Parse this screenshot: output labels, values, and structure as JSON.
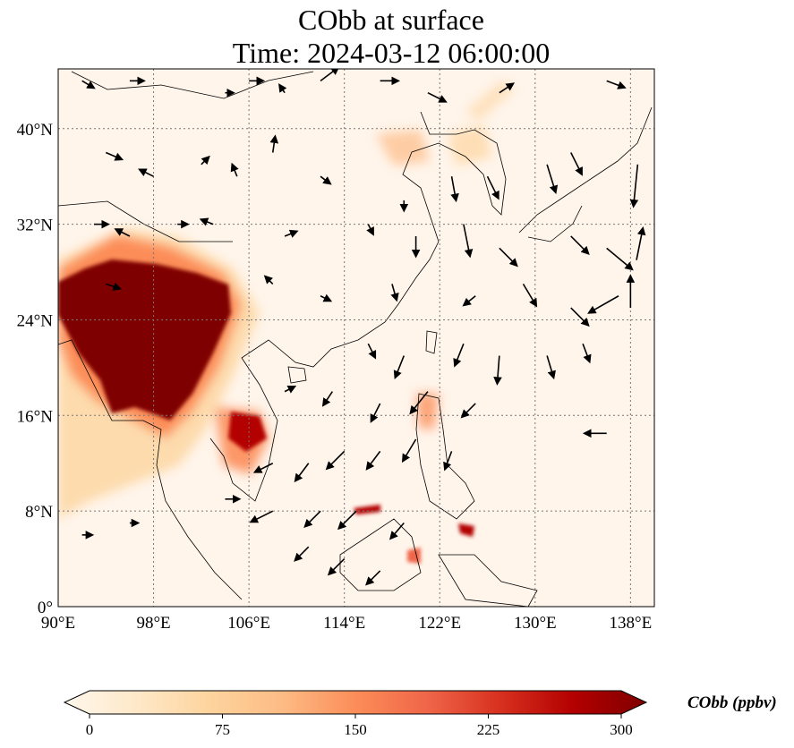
{
  "title": {
    "line1": "CObb at surface",
    "line2": "Time: 2024-03-12 06:00:00"
  },
  "map": {
    "lon_range": [
      90,
      140
    ],
    "lat_range": [
      0,
      45
    ],
    "x_ticks": [
      {
        "value": 90,
        "label": "90°E"
      },
      {
        "value": 98,
        "label": "98°E"
      },
      {
        "value": 106,
        "label": "106°E"
      },
      {
        "value": 114,
        "label": "114°E"
      },
      {
        "value": 122,
        "label": "122°E"
      },
      {
        "value": 130,
        "label": "130°E"
      },
      {
        "value": 138,
        "label": "138°E"
      }
    ],
    "y_ticks": [
      {
        "value": 0,
        "label": "0°"
      },
      {
        "value": 8,
        "label": "8°N"
      },
      {
        "value": 16,
        "label": "16°N"
      },
      {
        "value": 24,
        "label": "24°N"
      },
      {
        "value": 32,
        "label": "32°N"
      },
      {
        "value": 40,
        "label": "40°N"
      }
    ],
    "background_color": "#fff5eb",
    "grid": "dotted"
  },
  "colorbar": {
    "label": "CObb (ppbv)",
    "min": 0,
    "max": 300,
    "ticks": [
      "0",
      "75",
      "150",
      "225",
      "300"
    ],
    "colors": [
      "#fff7ec",
      "#fee8c8",
      "#fdd49e",
      "#fdbb84",
      "#fc8d59",
      "#ef6548",
      "#d7301f",
      "#b30000",
      "#7f0000"
    ]
  },
  "wind_vectors": [
    [
      92,
      44,
      0.5,
      -0.3
    ],
    [
      96,
      44,
      0.6,
      0
    ],
    [
      104,
      43,
      0.3,
      0
    ],
    [
      106,
      44,
      0.6,
      0
    ],
    [
      109,
      43,
      -0.2,
      0.3
    ],
    [
      112,
      44,
      0.8,
      0.6
    ],
    [
      117,
      44,
      0.8,
      0
    ],
    [
      121,
      43,
      0.8,
      -0.4
    ],
    [
      127,
      43,
      0.6,
      0.4
    ],
    [
      136,
      44,
      0.8,
      -0.3
    ],
    [
      94,
      38,
      0.7,
      -0.3
    ],
    [
      98,
      36,
      -0.6,
      0.3
    ],
    [
      102,
      37,
      0.3,
      0.3
    ],
    [
      105,
      36,
      -0.2,
      0.5
    ],
    [
      108,
      38,
      0.1,
      0.7
    ],
    [
      112,
      36,
      0.4,
      -0.3
    ],
    [
      119,
      34,
      0,
      -0.4
    ],
    [
      123,
      36,
      0.2,
      -1.1
    ],
    [
      126,
      36,
      0.5,
      -1.0
    ],
    [
      131,
      37,
      0.4,
      -1.3
    ],
    [
      133,
      38,
      0.5,
      -1.0
    ],
    [
      138.6,
      37,
      -0.2,
      -2.0
    ],
    [
      93,
      32,
      0.6,
      0
    ],
    [
      96,
      31,
      -0.6,
      0.3
    ],
    [
      100,
      32,
      0.4,
      0
    ],
    [
      103,
      32,
      -0.5,
      0.2
    ],
    [
      109,
      31,
      0.5,
      0.2
    ],
    [
      116,
      32,
      0.2,
      -0.4
    ],
    [
      120,
      31,
      0,
      -0.9
    ],
    [
      124,
      32,
      0.3,
      -1.5
    ],
    [
      127,
      30,
      0.8,
      -0.8
    ],
    [
      133,
      31,
      0.8,
      -0.8
    ],
    [
      136,
      30,
      1.2,
      -1.0
    ],
    [
      138.5,
      29,
      0.3,
      1.5
    ],
    [
      94,
      27,
      0.6,
      -0.2
    ],
    [
      108,
      27,
      -0.3,
      0.3
    ],
    [
      112,
      26,
      0.4,
      -0.2
    ],
    [
      118,
      27,
      0.2,
      -0.7
    ],
    [
      125,
      26,
      -0.5,
      -0.4
    ],
    [
      129,
      27,
      0.6,
      -1.0
    ],
    [
      133,
      25,
      0.8,
      -0.8
    ],
    [
      137,
      26,
      -1.4,
      -0.8
    ],
    [
      138,
      25,
      0,
      1.5
    ],
    [
      116,
      22,
      0.3,
      -0.6
    ],
    [
      119,
      21,
      -0.4,
      -1.0
    ],
    [
      124,
      22,
      -0.4,
      -1.0
    ],
    [
      127,
      21,
      -0.1,
      -1.3
    ],
    [
      131,
      21,
      0.3,
      -1.0
    ],
    [
      134,
      22,
      0.3,
      -0.8
    ],
    [
      109,
      18,
      0.4,
      0.2
    ],
    [
      113,
      18,
      -0.4,
      -0.6
    ],
    [
      117,
      17,
      -0.4,
      -0.8
    ],
    [
      121,
      18,
      -0.8,
      -1.0
    ],
    [
      125,
      17,
      -0.6,
      -0.6
    ],
    [
      136,
      14.5,
      -1.0,
      0
    ],
    [
      108,
      12,
      -0.8,
      -0.4
    ],
    [
      111,
      12,
      -0.6,
      -0.8
    ],
    [
      114,
      13,
      -0.8,
      -0.8
    ],
    [
      117,
      13,
      -0.6,
      -0.8
    ],
    [
      120,
      14,
      -0.6,
      -1.0
    ],
    [
      123,
      13,
      -0.3,
      -0.8
    ],
    [
      104,
      9,
      0.6,
      0
    ],
    [
      108,
      8,
      -1.0,
      -0.5
    ],
    [
      112,
      8,
      -0.7,
      -0.7
    ],
    [
      115,
      8,
      -0.8,
      -0.8
    ],
    [
      119,
      7,
      -0.6,
      -0.7
    ],
    [
      111,
      5,
      -0.6,
      -0.6
    ],
    [
      114,
      4,
      -0.7,
      -0.7
    ],
    [
      117,
      3,
      -0.6,
      -0.6
    ],
    [
      92,
      6,
      0.4,
      0
    ],
    [
      96,
      7,
      0.3,
      0
    ]
  ]
}
